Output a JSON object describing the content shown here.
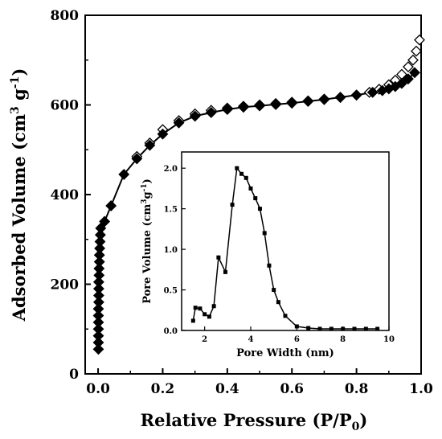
{
  "chart_data": [
    {
      "type": "scatter",
      "xlabel": "Relative Pressure (P/P0)",
      "xlabel_main": "Relative Pressure (P/P",
      "xlabel_sub": "0",
      "xlabel_tail": ")",
      "ylabel": "Adsorbed Volume (cm3 g-1)",
      "ylabel_main": "Adsorbed Volume (cm",
      "ylabel_sup1": "3",
      "ylabel_mid": " g",
      "ylabel_sup2": "-1",
      "ylabel_tail": ")",
      "xlim": [
        -0.04,
        1.0
      ],
      "ylim": [
        0,
        800
      ],
      "xticks": [
        "0.0",
        "0.2",
        "0.4",
        "0.6",
        "0.8",
        "1.0"
      ],
      "yticks": [
        "0",
        "200",
        "400",
        "600",
        "800"
      ],
      "grid": false,
      "series": [
        {
          "marker": "filled-diamond",
          "color": "#000000",
          "x": [
            0.001,
            0.001,
            0.001,
            0.001,
            0.001,
            0.001,
            0.001,
            0.002,
            0.002,
            0.002,
            0.002,
            0.003,
            0.003,
            0.004,
            0.004,
            0.005,
            0.006,
            0.007,
            0.008,
            0.02,
            0.04,
            0.08,
            0.12,
            0.16,
            0.2,
            0.25,
            0.3,
            0.35,
            0.4,
            0.45,
            0.5,
            0.55,
            0.6,
            0.65,
            0.7,
            0.75,
            0.8,
            0.85,
            0.88,
            0.9,
            0.92,
            0.94,
            0.96,
            0.98
          ],
          "y": [
            55,
            70,
            85,
            100,
            115,
            130,
            145,
            160,
            175,
            190,
            205,
            220,
            235,
            250,
            265,
            280,
            295,
            310,
            325,
            340,
            375,
            445,
            480,
            510,
            535,
            560,
            575,
            583,
            590,
            595,
            598,
            601,
            604,
            608,
            612,
            617,
            622,
            628,
            632,
            636,
            641,
            648,
            658,
            672
          ]
        },
        {
          "marker": "open-diamond",
          "color": "#000000",
          "x": [
            0.12,
            0.16,
            0.2,
            0.25,
            0.3,
            0.35,
            0.4,
            0.45,
            0.5,
            0.55,
            0.6,
            0.65,
            0.7,
            0.75,
            0.8,
            0.84,
            0.87,
            0.9,
            0.92,
            0.94,
            0.96,
            0.975,
            0.985,
            0.995
          ],
          "y": [
            485,
            515,
            545,
            565,
            580,
            588,
            593,
            597,
            600,
            603,
            606,
            609,
            613,
            617,
            622,
            628,
            635,
            645,
            655,
            668,
            685,
            700,
            720,
            745
          ]
        }
      ]
    },
    {
      "type": "line",
      "xlabel": "Pore Width (nm)",
      "ylabel": "Pore Volume (cm3g-1)",
      "ylabel_main": "Pore Volume (cm",
      "ylabel_sup": "3",
      "ylabel_mid": "g",
      "ylabel_sup2": "-1",
      "ylabel_tail": ")",
      "xlim": [
        1,
        10
      ],
      "ylim": [
        0,
        2.2
      ],
      "xticks": [
        "2",
        "4",
        "6",
        "8",
        "10"
      ],
      "yticks": [
        "0.0",
        "0.5",
        "1.0",
        "1.5",
        "2.0"
      ],
      "grid": false,
      "series": [
        {
          "marker": "filled-square",
          "color": "#000000",
          "x": [
            1.5,
            1.6,
            1.8,
            2.0,
            2.2,
            2.4,
            2.6,
            2.9,
            3.2,
            3.4,
            3.6,
            3.8,
            4.0,
            4.2,
            4.4,
            4.6,
            4.8,
            5.0,
            5.2,
            5.5,
            6.0,
            6.5,
            7.0,
            7.5,
            8.0,
            8.5,
            9.0,
            9.5
          ],
          "y": [
            0.12,
            0.28,
            0.27,
            0.2,
            0.17,
            0.3,
            0.9,
            0.72,
            1.55,
            2.0,
            1.93,
            1.88,
            1.75,
            1.63,
            1.5,
            1.2,
            0.8,
            0.5,
            0.35,
            0.18,
            0.05,
            0.03,
            0.02,
            0.02,
            0.02,
            0.02,
            0.02,
            0.02
          ]
        }
      ]
    }
  ]
}
